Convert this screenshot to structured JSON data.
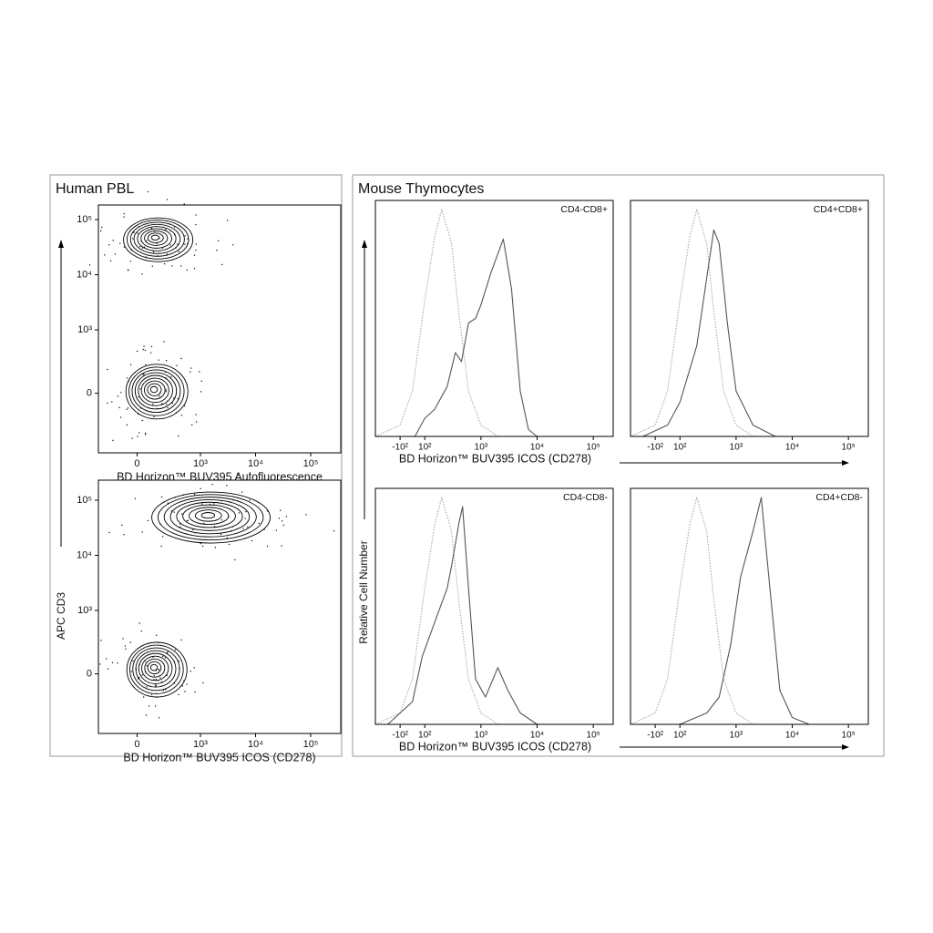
{
  "panels": [
    {
      "title": "Human PBL",
      "y_label": "APC  CD3"
    },
    {
      "title": "Mouse Thymocytes",
      "y_label": "Relative Cell Number"
    }
  ],
  "chart_data": [
    {
      "type": "contour",
      "x_label": "BD Horizon™ BUV395 Autofluorescence",
      "xlim": [
        -610,
        351000
      ],
      "xticks": [
        0,
        {
          "value": 1000,
          "label": "10³"
        },
        {
          "value": 10000,
          "label": "10⁴"
        },
        {
          "value": 100000,
          "label": "10⁵"
        }
      ],
      "ylim": [
        -940,
        184000
      ],
      "yticks": [
        0,
        {
          "value": 1000,
          "label": "10³"
        },
        {
          "value": 10000,
          "label": "10⁴"
        },
        {
          "value": 100000,
          "label": "10⁵"
        }
      ],
      "populations": {
        "x": [
          310,
          290
        ],
        "y": [
          43000,
          25
        ]
      }
    },
    {
      "type": "contour",
      "x_label": "BD Horizon™ BUV395  ICOS (CD278)",
      "xlim": [
        -610,
        351000
      ],
      "xticks": [
        0,
        {
          "value": 1000,
          "label": "10³"
        },
        {
          "value": 10000,
          "label": "10⁴"
        },
        {
          "value": 100000,
          "label": "10⁵"
        }
      ],
      "ylim": [
        -940,
        231000
      ],
      "yticks": [
        0,
        {
          "value": 1000,
          "label": "10³"
        },
        {
          "value": 10000,
          "label": "10⁴"
        },
        {
          "value": 100000,
          "label": "10⁵"
        }
      ],
      "populations": {
        "x": [
          1460,
          290
        ],
        "y": [
          48500,
          66
        ]
      }
    },
    {
      "type": "histogram",
      "title": "CD4-CD8+",
      "x_label": "BD Horizon™ BUV395  ICOS (CD278)",
      "xlim": [
        -300,
        226000
      ],
      "xticks": [
        {
          "value": -100,
          "label": "-10²"
        },
        {
          "value": 100,
          "label": "10²"
        },
        {
          "value": 1000,
          "label": "10³"
        },
        {
          "value": 10000,
          "label": "10⁴"
        },
        {
          "value": 100000,
          "label": "10⁵"
        }
      ],
      "ylim": [
        0,
        104
      ],
      "series": [
        {
          "color": "#aaaaaa",
          "style": "dotted",
          "x": [
            -300,
            -100,
            0,
            100,
            150,
            200,
            300,
            400,
            600,
            1000,
            2000
          ],
          "values": [
            0,
            5,
            20,
            60,
            88,
            100,
            85,
            55,
            20,
            5,
            0
          ]
        },
        {
          "color": "#555555",
          "style": "solid",
          "x": [
            20,
            100,
            150,
            250,
            350,
            450,
            600,
            800,
            1000,
            1500,
            2500,
            3500,
            5000,
            7000,
            10000
          ],
          "values": [
            0,
            8,
            12,
            22,
            37,
            33,
            50,
            52,
            58,
            72,
            87,
            65,
            20,
            3,
            0
          ]
        }
      ]
    },
    {
      "type": "histogram",
      "title": "CD4+CD8+",
      "xlim": [
        -300,
        226000
      ],
      "xticks": [
        {
          "value": -100,
          "label": "-10²"
        },
        {
          "value": 100,
          "label": "10²"
        },
        {
          "value": 1000,
          "label": "10³"
        },
        {
          "value": 10000,
          "label": "10⁴"
        },
        {
          "value": 100000,
          "label": "10⁵"
        }
      ],
      "ylim": [
        0,
        104
      ],
      "series": [
        {
          "color": "#aaaaaa",
          "style": "dotted",
          "x": [
            -300,
            -100,
            0,
            100,
            150,
            200,
            300,
            400,
            600,
            1000,
            2000
          ],
          "values": [
            0,
            5,
            20,
            60,
            88,
            100,
            85,
            55,
            20,
            5,
            0
          ]
        },
        {
          "color": "#555555",
          "style": "solid",
          "x": [
            -200,
            0,
            100,
            200,
            300,
            400,
            500,
            700,
            1000,
            2000,
            5000
          ],
          "values": [
            0,
            5,
            15,
            40,
            70,
            91,
            85,
            50,
            20,
            5,
            0
          ]
        }
      ]
    },
    {
      "type": "histogram",
      "title": "CD4-CD8-",
      "x_label": "BD Horizon™ BUV395  ICOS (CD278)",
      "xlim": [
        -300,
        226000
      ],
      "xticks": [
        {
          "value": -100,
          "label": "-10²"
        },
        {
          "value": 100,
          "label": "10²"
        },
        {
          "value": 1000,
          "label": "10³"
        },
        {
          "value": 10000,
          "label": "10⁴"
        },
        {
          "value": 100000,
          "label": "10⁵"
        }
      ],
      "ylim": [
        0,
        104
      ],
      "series": [
        {
          "color": "#aaaaaa",
          "style": "dotted",
          "x": [
            -300,
            -100,
            0,
            100,
            150,
            200,
            300,
            400,
            600,
            1000,
            2000
          ],
          "values": [
            0,
            5,
            20,
            60,
            88,
            100,
            85,
            55,
            20,
            5,
            0
          ]
        },
        {
          "color": "#555555",
          "style": "solid",
          "x": [
            -200,
            0,
            80,
            150,
            250,
            300,
            400,
            470,
            600,
            800,
            1200,
            2000,
            3000,
            5000,
            10000
          ],
          "values": [
            0,
            10,
            30,
            45,
            60,
            70,
            88,
            96,
            60,
            20,
            12,
            25,
            15,
            5,
            0
          ]
        }
      ]
    },
    {
      "type": "histogram",
      "title": "CD4+CD8-",
      "xlim": [
        -300,
        226000
      ],
      "xticks": [
        {
          "value": -100,
          "label": "-10²"
        },
        {
          "value": 100,
          "label": "10²"
        },
        {
          "value": 1000,
          "label": "10³"
        },
        {
          "value": 10000,
          "label": "10⁴"
        },
        {
          "value": 100000,
          "label": "10⁵"
        }
      ],
      "ylim": [
        0,
        104
      ],
      "series": [
        {
          "color": "#aaaaaa",
          "style": "dotted",
          "x": [
            -300,
            -100,
            0,
            100,
            150,
            200,
            300,
            400,
            600,
            1000,
            2000
          ],
          "values": [
            0,
            5,
            20,
            60,
            88,
            100,
            85,
            55,
            20,
            5,
            0
          ]
        },
        {
          "color": "#555555",
          "style": "solid",
          "x": [
            100,
            300,
            500,
            800,
            1200,
            2000,
            2800,
            4000,
            6000,
            10000,
            20000
          ],
          "values": [
            0,
            5,
            12,
            35,
            65,
            85,
            100,
            60,
            15,
            3,
            0
          ]
        }
      ]
    }
  ]
}
